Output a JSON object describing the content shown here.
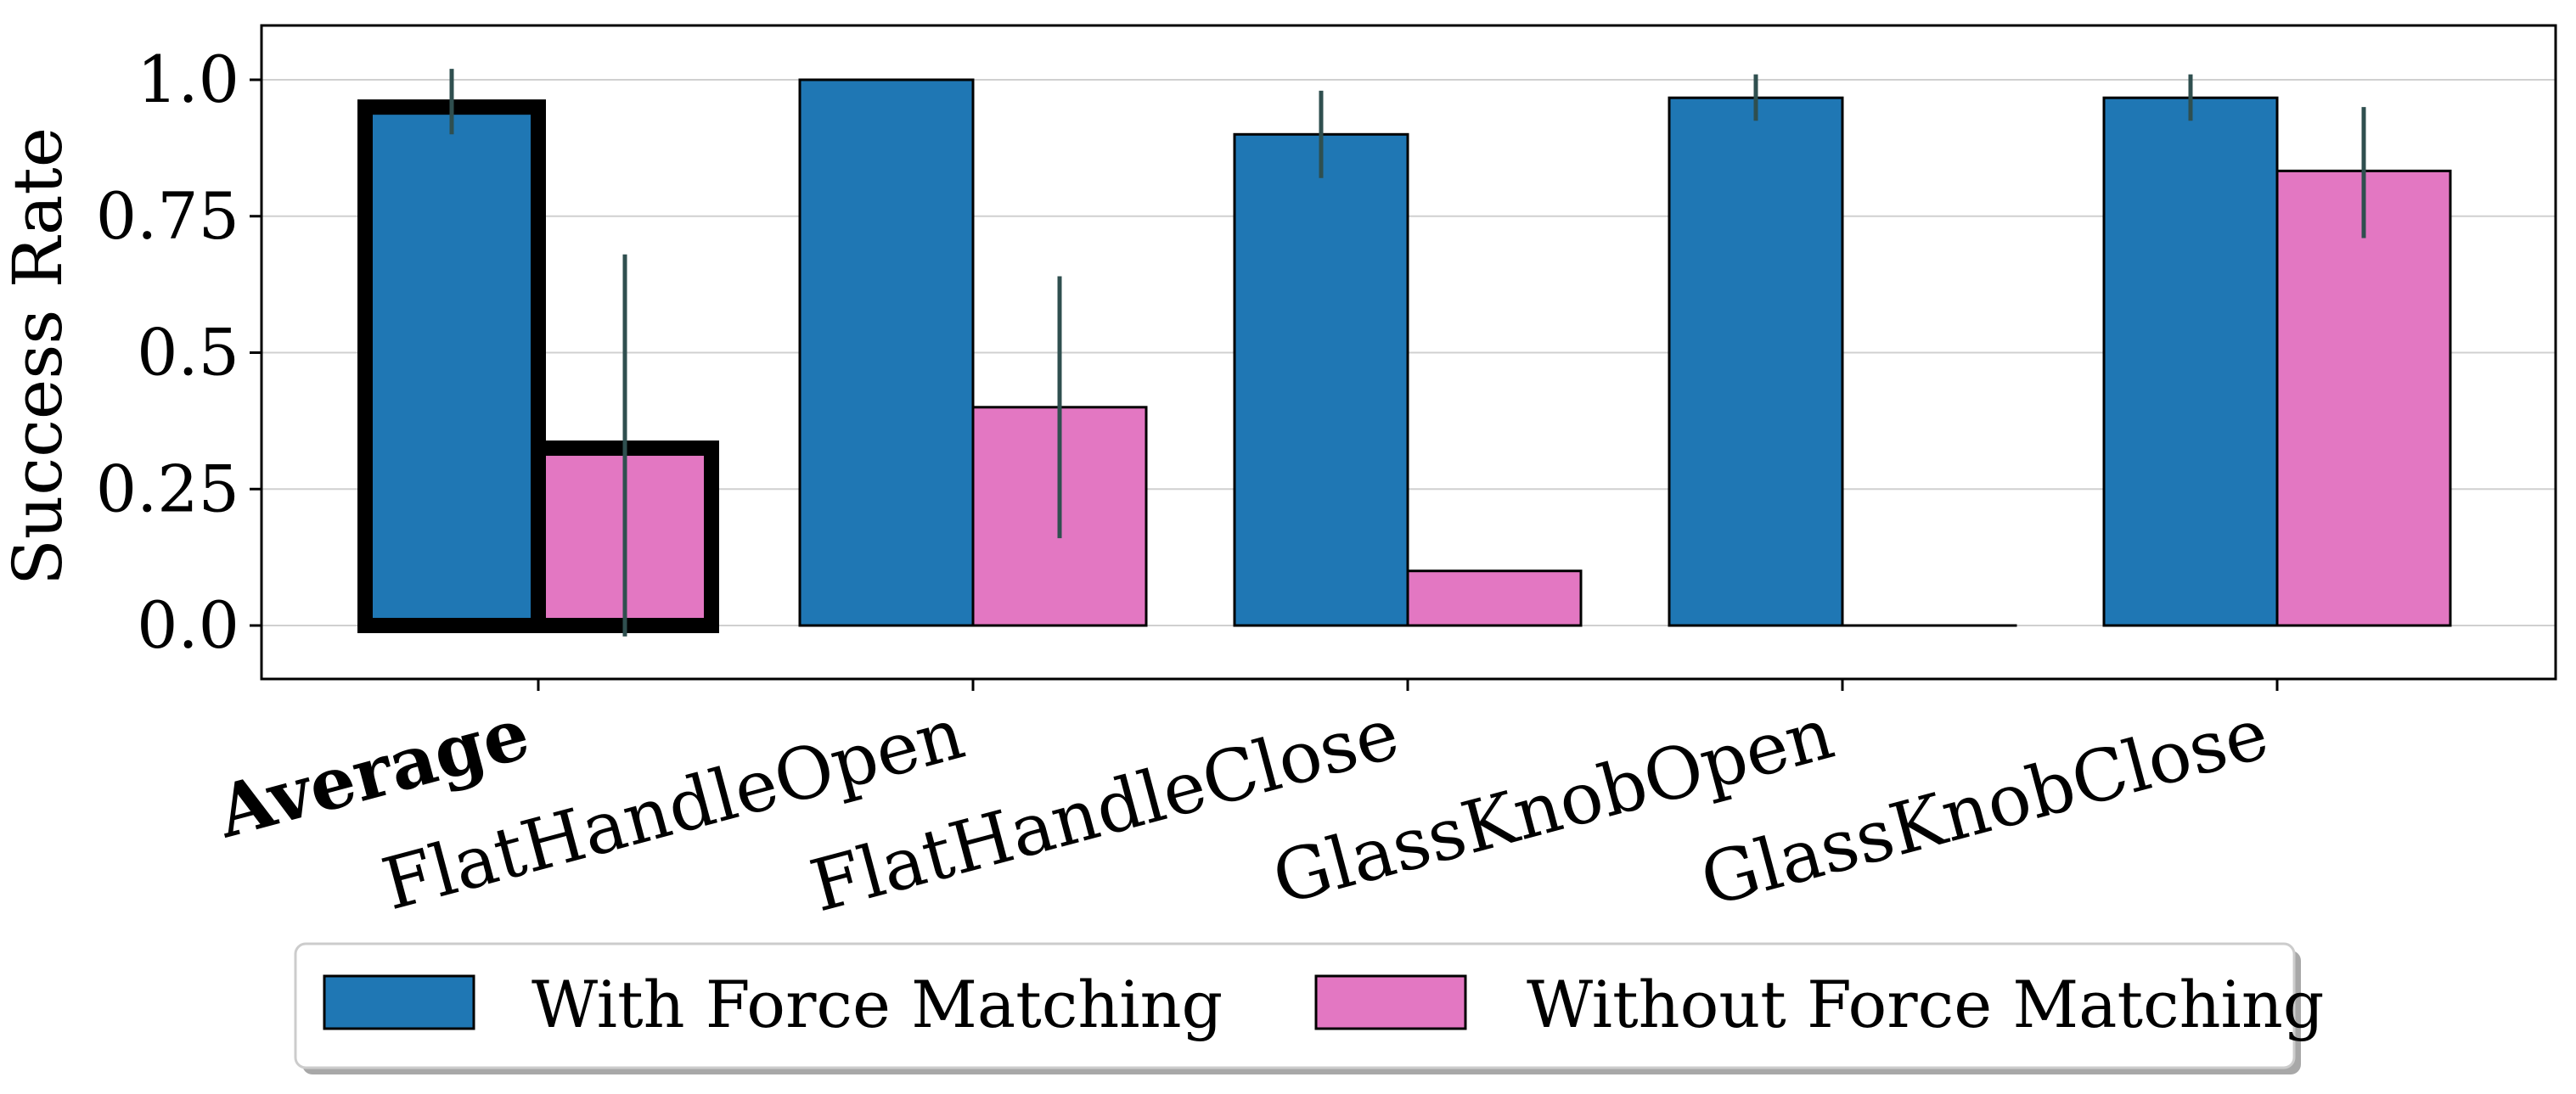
{
  "chart_data": {
    "type": "bar",
    "categories": [
      "Average",
      "FlatHandleOpen",
      "FlatHandleClose",
      "GlassKnobOpen",
      "GlassKnobClose"
    ],
    "bold_categories": [
      "Average"
    ],
    "highlighted_categories": [
      "Average"
    ],
    "series": [
      {
        "name": "With Force Matching",
        "color": "#1f77b4",
        "values": [
          0.95,
          1.0,
          0.9,
          0.967,
          0.967
        ],
        "error_low": [
          0.9,
          1.0,
          0.82,
          0.925,
          0.925
        ],
        "error_high": [
          1.02,
          1.0,
          0.98,
          1.01,
          1.01
        ]
      },
      {
        "name": "Without Force Matching",
        "color": "#e377c2",
        "values": [
          0.325,
          0.4,
          0.1,
          0.0,
          0.833
        ],
        "error_low": [
          -0.02,
          0.16,
          0.1,
          0.0,
          0.71
        ],
        "error_high": [
          0.68,
          0.64,
          0.1,
          0.0,
          0.95
        ]
      }
    ],
    "ylabel": "Success Rate",
    "xlabel": "",
    "ylim": [
      -0.1,
      1.1
    ],
    "yticks": [
      0.0,
      0.25,
      0.5,
      0.75,
      1.0
    ],
    "ytick_labels": [
      "0.0",
      "0.25",
      "0.5",
      "0.75",
      "1.0"
    ],
    "grid": "horizontal",
    "legend_position": "bottom-center",
    "error_bar_color": "#2f4f4f"
  }
}
